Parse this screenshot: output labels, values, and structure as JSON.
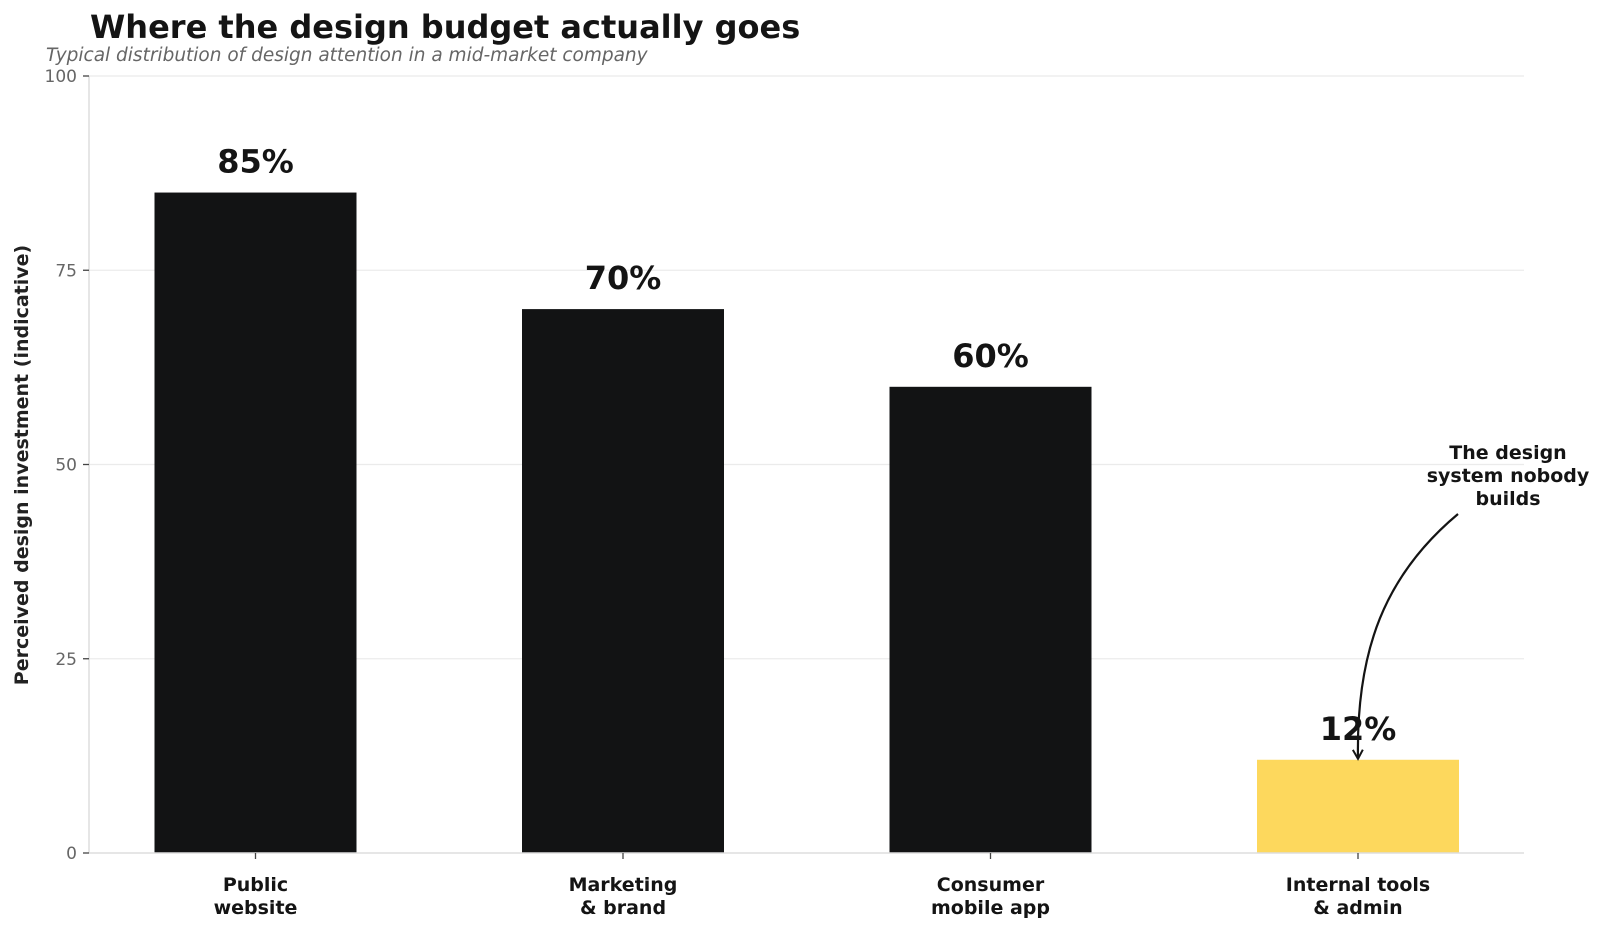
{
  "chart_data": {
    "type": "bar",
    "title": "Where the design budget actually goes",
    "subtitle": "Typical distribution of design attention in a mid-market company",
    "xlabel": "",
    "ylabel": "Perceived design investment (indicative)",
    "categories": [
      [
        "Public",
        "website"
      ],
      [
        "Marketing",
        "& brand"
      ],
      [
        "Consumer",
        "mobile app"
      ],
      [
        "Internal tools",
        "& admin"
      ]
    ],
    "values": [
      85,
      70,
      60,
      12
    ],
    "value_labels": [
      "85%",
      "70%",
      "60%",
      "12%"
    ],
    "bar_colors": [
      "#121314",
      "#121314",
      "#121314",
      "#fdd85d"
    ],
    "ylim": [
      0,
      100
    ],
    "yticks": [
      0,
      25,
      50,
      75,
      100
    ],
    "grid": "horizontal",
    "legend": "none",
    "annotation": {
      "category_index": 3,
      "lines": [
        "The design",
        "system nobody",
        "builds"
      ]
    },
    "colors": {
      "bar": "#121314",
      "highlight": "#fdd85d",
      "grid": "#ebebeb",
      "axis": "#dddddd",
      "text": "#141414",
      "muted": "#666666"
    }
  }
}
